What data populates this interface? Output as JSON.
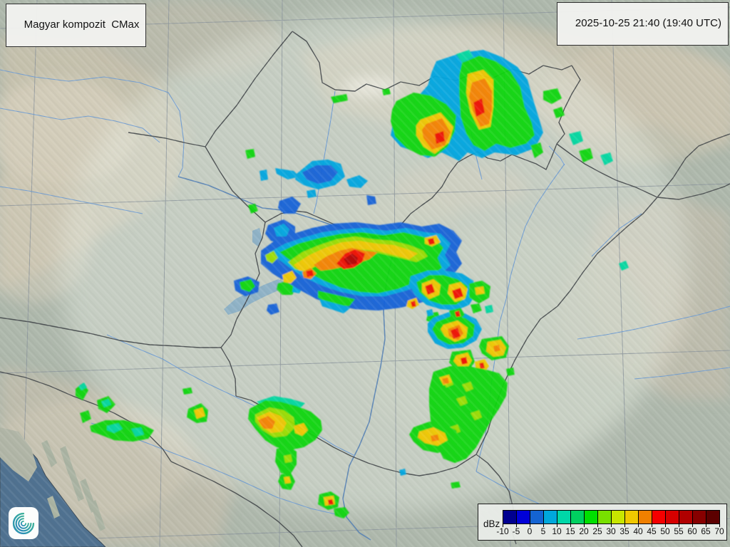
{
  "header": {
    "product_label": "Magyar kompozit  CMax",
    "timestamp": "2025-10-25 21:40 (19:40 UTC)"
  },
  "legend": {
    "unit_label": "dBz",
    "ticks": [
      "-10",
      "-5",
      "0",
      "5",
      "10",
      "15",
      "20",
      "25",
      "30",
      "35",
      "40",
      "45",
      "50",
      "55",
      "60",
      "65",
      "70"
    ],
    "colors": [
      "#00008f",
      "#0000d8",
      "#1464d2",
      "#00a8dc",
      "#00d7a8",
      "#00d060",
      "#00e000",
      "#78e000",
      "#c8e600",
      "#f0c800",
      "#f08000",
      "#f50000",
      "#d70000",
      "#b00000",
      "#870000",
      "#5c0000"
    ]
  },
  "logo": {
    "name": "hungaromet-spiral-logo"
  },
  "map": {
    "palette": {
      "blue": "#1262d8",
      "cyan": "#00a6e0",
      "teal": "#00d7a0",
      "green": "#0bd60b",
      "lime": "#9ade00",
      "yellow": "#f0c800",
      "orange": "#f58200",
      "red": "#f01000",
      "darkred": "#b40000"
    },
    "radar_echoes": [
      {
        "c": "cyan",
        "p": "612,86 648,74 678,70 704,80 726,94 740,112 748,140 756,166 762,186 750,208 724,218 694,214 676,222 656,214 644,226 620,214 600,222 580,212 562,206 548,190 552,168 566,150 584,138 600,120 606,100"
      },
      {
        "c": "teal",
        "p": "640,76 658,70 664,80 648,88"
      },
      {
        "c": "green",
        "p": "648,88 672,78 696,86 716,100 730,122 736,150 746,172 750,190 738,202 716,208 696,202 680,212 664,204 654,188 646,164 644,130 644,106"
      },
      {
        "c": "green",
        "p": "556,142 580,130 604,134 626,146 640,162 638,184 628,206 610,220 590,218 570,208 554,192 548,170 550,154"
      },
      {
        "c": "yellow",
        "p": "656,104 678,98 692,112 692,150 688,178 672,182 660,158 654,130"
      },
      {
        "c": "orange",
        "p": "662,116 680,110 690,128 690,154 686,174 674,178 664,158 658,136"
      },
      {
        "c": "red",
        "p": "664,144 676,138 680,158 668,164"
      },
      {
        "c": "yellow",
        "p": "590,168 618,158 636,178 630,200 610,216 594,206 584,190 584,176"
      },
      {
        "c": "orange",
        "p": "598,174 620,166 632,186 624,204 606,210 594,194 592,182"
      },
      {
        "c": "red",
        "p": "610,188 622,184 624,198 612,202"
      },
      {
        "c": "green",
        "p": "744,204 758,200 762,214 750,222"
      },
      {
        "c": "green",
        "p": "762,128 782,124 788,138 774,146 762,140"
      },
      {
        "c": "green",
        "p": "776,154 788,150 792,162 780,166"
      },
      {
        "c": "teal",
        "p": "798,188 814,184 818,198 804,204"
      },
      {
        "c": "green",
        "p": "812,212 828,208 832,222 818,228"
      },
      {
        "c": "teal",
        "p": "842,218 856,214 860,226 848,232"
      },
      {
        "c": "green",
        "p": "536,126 546,124 548,132 538,134"
      },
      {
        "c": "green",
        "p": "464,136 486,132 488,141 468,145"
      },
      {
        "c": "teal",
        "p": "868,370 878,366 882,376 872,380"
      },
      {
        "c": "green",
        "p": "344,211 356,209 358,220 347,223"
      },
      {
        "c": "cyan",
        "p": "364,240 374,238 376,252 366,254"
      },
      {
        "c": "cyan",
        "p": "416,244 438,226 460,224 478,230 484,248 470,260 446,266 426,260 414,252"
      },
      {
        "c": "blue",
        "p": "424,242 444,232 464,232 474,242 464,254 446,258 430,252"
      },
      {
        "c": "cyan",
        "p": "386,236 412,240 420,248 404,252 388,244"
      },
      {
        "c": "cyan",
        "p": "486,252 504,246 516,254 506,264 490,262"
      },
      {
        "c": "blue",
        "p": "514,274 526,276 528,286 516,288"
      },
      {
        "c": "green",
        "p": "348,288 358,286 362,296 352,300"
      },
      {
        "c": "blue",
        "p": "392,282 410,276 422,286 414,300 398,300 390,292"
      },
      {
        "c": "blue",
        "p": "376,316 398,308 414,318 414,334 398,344 380,338 372,328"
      },
      {
        "c": "cyan",
        "p": "384,320 398,314 406,322 402,332 388,332"
      },
      {
        "c": "cyan",
        "p": "430,268 442,266 444,276 432,278"
      },
      {
        "c": "blue",
        "p": "328,394 348,388 364,396 362,410 344,416 330,408"
      },
      {
        "c": "green",
        "p": "336,396 352,392 358,402 350,410 338,406"
      },
      {
        "c": "green",
        "p": "390,398 406,394 416,402 410,414 396,414 388,406"
      },
      {
        "c": "cyan",
        "p": "412,398 424,404 420,412 410,410"
      },
      {
        "c": "blue",
        "p": "376,428 388,426 392,438 380,442 374,436"
      },
      {
        "c": "blue",
        "p": "366,352 388,336 412,328 438,320 468,314 500,312 532,316 562,312 592,318 616,314 636,324 648,338 640,354 648,370 634,388 640,402 618,416 594,424 562,432 530,436 498,434 468,428 444,420 422,408 402,396 382,384 366,370"
      },
      {
        "c": "cyan",
        "p": "378,354 400,342 424,334 452,326 482,322 512,320 542,324 570,320 596,326 618,328 632,342 624,358 632,372 616,388 596,398 570,408 540,416 508,416 478,410 454,402 432,392 412,380 396,368 384,360"
      },
      {
        "c": "green",
        "p": "392,354 418,342 448,334 478,328 508,326 538,330 566,326 592,332 612,336 622,348 614,362 620,376 604,388 584,396 558,406 530,412 504,410 478,404 454,394 434,384 416,372 402,362"
      },
      {
        "c": "lime",
        "p": "404,368 424,354 448,344 472,336 498,332 524,336 550,338 574,344 594,352 600,360 584,368 560,362 534,356 510,352 488,356 466,362 446,372 428,382 414,378"
      },
      {
        "c": "yellow",
        "p": "412,372 434,358 456,348 480,340 504,338 528,342 552,344 572,350 586,356 574,364 552,358 528,352 506,350 486,354 466,360 448,370 432,380 420,380"
      },
      {
        "c": "orange",
        "p": "440,372 458,360 476,352 494,348 512,352 530,354 518,364 500,370 484,374 466,378 450,380"
      },
      {
        "c": "red",
        "p": "472,370 484,356 498,350 512,356 508,368 496,376 482,378"
      },
      {
        "c": "darkred",
        "p": "482,364 494,356 502,362 500,370 488,372"
      },
      {
        "c": "orange",
        "p": "424,382 436,376 444,384 436,392 426,390"
      },
      {
        "c": "red",
        "p": "429,381 438,379 440,387 431,389"
      },
      {
        "c": "yellow",
        "p": "396,386 410,380 416,390 408,398 398,396"
      },
      {
        "c": "lime",
        "p": "372,358 384,352 390,362 382,370 374,366"
      },
      {
        "c": "yellow",
        "p": "596,334 612,330 618,340 606,346 596,342"
      },
      {
        "c": "red",
        "p": "600,336 608,334 610,342 602,344"
      },
      {
        "c": "green",
        "p": "446,408 472,414 498,420 490,430 464,428 446,418"
      },
      {
        "c": "cyan",
        "p": "448,420 492,432 482,440 452,430"
      },
      {
        "c": "cyan",
        "p": "576,388 600,380 624,380 648,384 664,394 668,412 658,428 640,436 618,434 598,428 582,414 574,400"
      },
      {
        "c": "green",
        "p": "584,396 602,386 622,386 642,392 656,402 654,418 640,428 620,428 602,422 588,410"
      },
      {
        "c": "yellow",
        "p": "592,398 608,392 618,400 616,414 602,420 592,410"
      },
      {
        "c": "red",
        "p": "596,402 606,398 610,410 600,414"
      },
      {
        "c": "yellow",
        "p": "630,400 646,396 656,406 652,420 638,424 628,412"
      },
      {
        "c": "red",
        "p": "634,408 646,404 650,416 638,420"
      },
      {
        "c": "green",
        "p": "658,398 676,394 688,402 686,418 672,426 658,418"
      },
      {
        "c": "yellow",
        "p": "666,404 678,402 680,412 668,414"
      },
      {
        "c": "yellow",
        "p": "572,422 584,418 588,428 578,434 570,430"
      },
      {
        "c": "red",
        "p": "576,424 582,422 584,430 578,431"
      },
      {
        "c": "green",
        "p": "600,440 614,438 618,448 608,454 598,450"
      },
      {
        "c": "green",
        "p": "660,428 672,426 676,436 664,440"
      },
      {
        "c": "teal",
        "p": "680,430 690,428 692,438 682,440"
      },
      {
        "c": "cyan",
        "p": "608,446 630,438 652,440 668,448 676,462 668,478 650,488 628,490 610,482 600,466 600,454"
      },
      {
        "c": "green",
        "p": "612,452 632,444 652,446 666,456 664,472 650,482 630,484 614,476 606,462"
      },
      {
        "c": "yellow",
        "p": "622,456 642,450 656,460 654,474 638,480 624,472 618,462"
      },
      {
        "c": "orange",
        "p": "628,462 644,456 650,468 642,478 630,472"
      },
      {
        "c": "red",
        "p": "632,464 642,460 646,472 636,476"
      },
      {
        "c": "green",
        "p": "630,436 646,432 652,442 644,450 632,446"
      },
      {
        "c": "red",
        "p": "638,438 644,436 646,444 640,445"
      },
      {
        "c": "green",
        "p": "676,476 704,472 714,486 710,502 690,506 676,496 672,486"
      },
      {
        "c": "yellow",
        "p": "684,480 702,477 710,488 706,499 692,501 682,493"
      },
      {
        "c": "orange",
        "p": "692,486 700,484 702,492 694,494"
      },
      {
        "c": "green",
        "p": "634,494 660,491 666,508 658,520 640,520 630,509"
      },
      {
        "c": "yellow",
        "p": "640,499 656,495 662,506 656,516 644,516 636,507"
      },
      {
        "c": "red",
        "p": "646,503 654,501 656,510 648,512"
      },
      {
        "c": "yellow",
        "p": "666,508 680,504 686,514 680,522 668,520"
      },
      {
        "c": "red",
        "p": "672,510 678,509 680,517 674,518"
      },
      {
        "c": "green",
        "p": "608,522 632,514 656,514 678,518 700,524 712,538 710,556 700,574 688,592 678,610 668,628 654,644 638,650 622,644 614,628 608,610 604,590 602,568 602,546"
      },
      {
        "c": "lime",
        "p": "620,534 632,530 636,540 626,544"
      },
      {
        "c": "lime",
        "p": "648,540 660,536 664,546 654,550"
      },
      {
        "c": "lime",
        "p": "640,560 652,556 656,566 646,570"
      },
      {
        "c": "lime",
        "p": "660,580 672,576 676,586 666,590"
      },
      {
        "c": "lime",
        "p": "630,600 642,596 646,606 636,610"
      },
      {
        "c": "yellow",
        "p": "616,530 630,526 634,537 622,541"
      },
      {
        "c": "orange",
        "p": "620,532 628,530 630,538 622,539"
      },
      {
        "c": "green",
        "p": "580,600 602,592 624,596 640,604 644,618 634,630 614,636 594,632 580,620 574,610"
      },
      {
        "c": "yellow",
        "p": "588,606 608,600 624,608 628,618 614,626 596,622 586,614"
      },
      {
        "c": "orange",
        "p": "604,612 614,610 616,618 606,620"
      },
      {
        "c": "green",
        "p": "710,518 720,516 722,526 712,528"
      },
      {
        "c": "cyan",
        "p": "598,436 606,434 608,442 600,444"
      },
      {
        "c": "teal",
        "p": "360,564 384,556 408,560 428,566 420,574 396,570 372,572"
      },
      {
        "c": "green",
        "p": "350,574 372,562 394,564 416,570 436,578 450,590 452,604 442,618 426,628 406,632 388,628 372,618 358,602 348,588"
      },
      {
        "c": "lime",
        "p": "358,582 378,572 398,576 412,586 414,600 402,612 384,614 368,604 358,592"
      },
      {
        "c": "yellow",
        "p": "360,586 378,578 394,584 402,594 396,606 380,608 366,598"
      },
      {
        "c": "orange",
        "p": "362,590 376,584 386,592 382,602 370,602"
      },
      {
        "c": "yellow",
        "p": "412,598 426,594 432,604 424,612 414,608"
      },
      {
        "c": "green",
        "p": "388,630 404,626 416,634 416,652 406,668 394,664 386,648"
      },
      {
        "c": "lime",
        "p": "398,640 408,638 410,648 400,650"
      },
      {
        "c": "green",
        "p": "394,666 408,664 414,676 408,688 396,686 390,676"
      },
      {
        "c": "yellow",
        "p": "398,670 406,669 408,678 400,679"
      },
      {
        "c": "green",
        "p": "448,694 464,690 476,698 474,712 460,716 446,708"
      },
      {
        "c": "yellow",
        "p": "454,698 468,696 470,708 456,710"
      },
      {
        "c": "red",
        "p": "460,702 466,701 468,708 461,709"
      },
      {
        "c": "green",
        "p": "468,714 484,712 490,720 482,728 470,724"
      },
      {
        "c": "cyan",
        "p": "560,660 568,658 570,666 562,668"
      },
      {
        "c": "green",
        "p": "632,678 644,676 646,684 634,686"
      },
      {
        "c": "green",
        "p": "106,546 116,538 124,548 116,562 106,556"
      },
      {
        "c": "teal",
        "p": "110,542 118,537 122,544 114,548"
      },
      {
        "c": "green",
        "p": "136,562 152,556 162,568 150,580 138,574"
      },
      {
        "c": "teal",
        "p": "142,564 152,560 156,568 146,572"
      },
      {
        "c": "green",
        "p": "112,580 124,576 128,588 116,594"
      },
      {
        "c": "green",
        "p": "126,598 148,590 174,590 200,596 216,604 208,616 186,620 160,618 140,610 128,606"
      },
      {
        "c": "teal",
        "p": "150,598 166,594 172,602 160,608 150,604"
      },
      {
        "c": "teal",
        "p": "184,602 198,600 202,610 190,613"
      },
      {
        "c": "green",
        "p": "264,574 282,566 292,576 290,592 276,594 262,586"
      },
      {
        "c": "yellow",
        "p": "272,576 284,572 288,584 276,588"
      },
      {
        "c": "green",
        "p": "256,546 268,544 270,552 258,554"
      }
    ]
  }
}
